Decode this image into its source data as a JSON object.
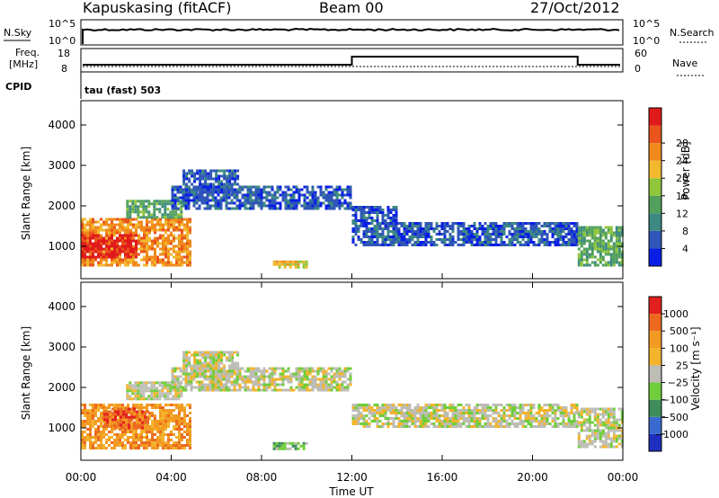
{
  "header": {
    "station": "Kapuskasing (fitACF)",
    "beam": "Beam 00",
    "date": "27/Oct/2012"
  },
  "top_panels": {
    "nsky_label": "N.Sky",
    "nsky_ticks": [
      "10^5",
      "10^0"
    ],
    "nsearch_label": "N.Search",
    "nsearch_ticks": [
      "10^5",
      "10^0"
    ],
    "freq_label_1": "Freq.",
    "freq_label_2": "[MHz]",
    "freq_ticks": [
      "18",
      "8"
    ],
    "nave_label": "Nave",
    "nave_ticks": [
      "60",
      "0"
    ],
    "cpid_label": "CPID",
    "cpid_value": "tau (fast) 503"
  },
  "colors": {
    "power": [
      "#0a1ee6",
      "#2f56b8",
      "#3d8a82",
      "#52a05c",
      "#8fc63a",
      "#f2b92e",
      "#f08a1c",
      "#e9541c",
      "#e01a1a"
    ],
    "velocity": [
      "#1e2fbf",
      "#3a6ad0",
      "#3f8d5a",
      "#6fce3a",
      "#bdbdb6",
      "#f3b42c",
      "#f29a22",
      "#ec6a20",
      "#e21f1f"
    ],
    "frame": "#000000"
  },
  "chart_data": [
    {
      "type": "heatmap",
      "name": "power",
      "ylabel": "Slant Range [km]",
      "xlabel": "Time UT",
      "ylim": [
        200,
        4600
      ],
      "yticks": [
        1000,
        2000,
        3000,
        4000
      ],
      "xticks": [
        "00:00",
        "04:00",
        "08:00",
        "12:00",
        "16:00",
        "20:00",
        "00:00"
      ],
      "colorbar_label": "Power [dB]",
      "colorbar_ticks": [
        "4",
        "8",
        "12",
        "16",
        "20",
        "24",
        "28"
      ],
      "regions": [
        {
          "t0": 0.0,
          "t1": 4.8,
          "r0": 500,
          "r1": 1700,
          "level": 6
        },
        {
          "t0": 0.0,
          "t1": 2.5,
          "r0": 700,
          "r1": 1300,
          "level": 8
        },
        {
          "t0": 2.0,
          "t1": 4.5,
          "r0": 1700,
          "r1": 2150,
          "level": 3
        },
        {
          "t0": 4.0,
          "t1": 12.0,
          "r0": 1900,
          "r1": 2500,
          "level": 1
        },
        {
          "t0": 4.5,
          "t1": 7.0,
          "r0": 2300,
          "r1": 2900,
          "level": 1
        },
        {
          "t0": 8.5,
          "t1": 10.0,
          "r0": 450,
          "r1": 650,
          "level": 5
        },
        {
          "t0": 12.0,
          "t1": 22.0,
          "r0": 1000,
          "r1": 1600,
          "level": 1
        },
        {
          "t0": 12.0,
          "t1": 14.0,
          "r0": 1600,
          "r1": 2000,
          "level": 1
        },
        {
          "t0": 22.0,
          "t1": 24.0,
          "r0": 500,
          "r1": 1500,
          "level": 3
        }
      ]
    },
    {
      "type": "heatmap",
      "name": "velocity",
      "ylabel": "Slant Range [km]",
      "xlabel": "Time UT",
      "ylim": [
        200,
        4600
      ],
      "yticks": [
        1000,
        2000,
        3000,
        4000
      ],
      "xticks": [
        "00:00",
        "04:00",
        "08:00",
        "12:00",
        "16:00",
        "20:00",
        "00:00"
      ],
      "colorbar_label": "Velocity [m s⁻¹]",
      "colorbar_ticks": [
        "1000",
        "500",
        "100",
        "25",
        "−25",
        "−100",
        "−500",
        "−1000"
      ],
      "regions": [
        {
          "t0": 0.0,
          "t1": 4.8,
          "r0": 500,
          "r1": 1600,
          "level": 6
        },
        {
          "t0": 1.0,
          "t1": 3.0,
          "r0": 1000,
          "r1": 1500,
          "level": 7
        },
        {
          "t0": 2.0,
          "t1": 4.5,
          "r0": 1700,
          "r1": 2150,
          "level": 4
        },
        {
          "t0": 4.0,
          "t1": 12.0,
          "r0": 1900,
          "r1": 2500,
          "level": 4
        },
        {
          "t0": 4.5,
          "t1": 7.0,
          "r0": 2300,
          "r1": 2900,
          "level": 4
        },
        {
          "t0": 8.5,
          "t1": 10.0,
          "r0": 450,
          "r1": 650,
          "level": 3
        },
        {
          "t0": 12.0,
          "t1": 22.0,
          "r0": 1000,
          "r1": 1600,
          "level": 4
        },
        {
          "t0": 22.0,
          "t1": 24.0,
          "r0": 500,
          "r1": 1500,
          "level": 4
        }
      ]
    }
  ]
}
